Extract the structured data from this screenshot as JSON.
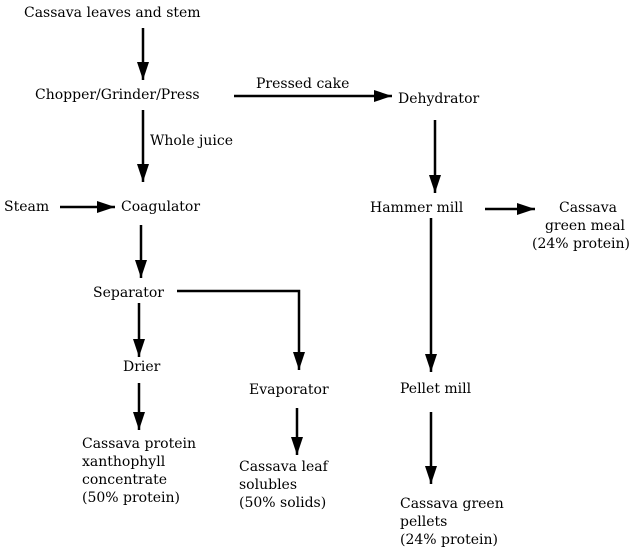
{
  "nodes": {
    "source": "Cassava leaves and stem",
    "chopper": "Chopper/Grinder/Press",
    "dehydrator": "Dehydrator",
    "steam": "Steam",
    "coagulator": "Coagulator",
    "separator": "Separator",
    "drier": "Drier",
    "evaporator": "Evaporator",
    "hammer_mill": "Hammer mill",
    "pellet_mill": "Pellet mill",
    "concentrate": [
      "Cassava protein",
      "xanthophyll",
      "concentrate",
      "(50% protein)"
    ],
    "solubles": [
      "Cassava leaf",
      "solubles",
      "(50% solids)"
    ],
    "green_meal": [
      "Cassava",
      "green meal",
      "(24% protein)"
    ],
    "pellets": [
      "Cassava green",
      "pellets",
      "(24% protein)"
    ]
  },
  "edges": {
    "pressed_cake": "Pressed cake",
    "whole_juice": "Whole juice"
  }
}
